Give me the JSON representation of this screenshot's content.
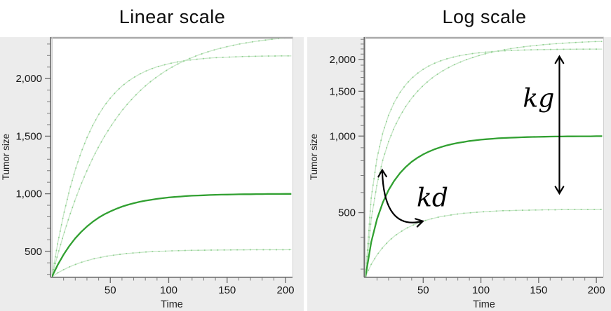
{
  "figure": {
    "background": "#ffffff",
    "panel_background": "#ececec",
    "plot_background": "#ffffff",
    "axis_color": "#6a6a6a",
    "border_color": "#a9a9a9"
  },
  "chart_data": {
    "type": "line",
    "panels": [
      {
        "title": "Linear scale",
        "xlabel": "Time",
        "ylabel": "Tumor size",
        "y_scale": "linear",
        "xlim": [
          0,
          206
        ],
        "ylim": [
          280,
          2360
        ],
        "x_major_ticks": [
          50,
          100,
          150,
          200
        ],
        "x_major_labels": [
          "50",
          "100",
          "150",
          "200"
        ],
        "x_minor_ticks": [
          10,
          20,
          30,
          40,
          60,
          70,
          80,
          90,
          110,
          120,
          130,
          140,
          160,
          170,
          180,
          190
        ],
        "y_major_ticks": [
          500,
          1000,
          1500,
          2000
        ],
        "y_major_labels": [
          "500",
          "1,000",
          "1,500",
          "2,000"
        ],
        "y_minor_ticks": [
          300,
          400,
          600,
          700,
          800,
          900,
          1100,
          1200,
          1300,
          1400,
          1600,
          1700,
          1800,
          1900,
          2100,
          2200,
          2300
        ],
        "grid": false,
        "legend": "none",
        "annotations": []
      },
      {
        "title": "Log scale",
        "xlabel": "Time",
        "ylabel": "Tumor size",
        "y_scale": "log",
        "xlim": [
          0,
          206
        ],
        "ylim": [
          280,
          2449
        ],
        "x_major_ticks": [
          50,
          100,
          150,
          200
        ],
        "x_major_labels": [
          "50",
          "100",
          "150",
          "200"
        ],
        "x_minor_ticks": [
          10,
          20,
          30,
          40,
          60,
          70,
          80,
          90,
          110,
          120,
          130,
          140,
          160,
          170,
          180,
          190
        ],
        "y_major_ticks": [
          500,
          1000,
          1500,
          2000
        ],
        "y_major_labels": [
          "500",
          "1,000",
          "1,500",
          "2,000"
        ],
        "y_minor_ticks": [
          300,
          400,
          600,
          700,
          800,
          900,
          1100,
          1200,
          1300,
          1400,
          1600,
          1700,
          1800,
          1900,
          2100,
          2200,
          2300,
          2400
        ],
        "grid": false,
        "legend": "none",
        "annotations": [
          {
            "id": "kg",
            "label": "kg",
            "type": "vertical-double-arrow",
            "x": 168,
            "y_from": 600,
            "y_to": 2040,
            "label_pos": {
              "x": 150,
              "y": 1400
            },
            "color": "#000000"
          },
          {
            "id": "kd",
            "label": "kd",
            "type": "curved-double-arrow",
            "from": {
              "x": 14.5,
              "y": 730
            },
            "control": {
              "x": 16,
              "y": 425
            },
            "to": {
              "x": 49,
              "y": 462
            },
            "label_pos": {
              "x": 58,
              "y": 570
            },
            "color": "#000000"
          }
        ]
      }
    ],
    "x": [
      0,
      5,
      10,
      15,
      20,
      25,
      30,
      35,
      40,
      45,
      50,
      55,
      60,
      65,
      70,
      75,
      80,
      85,
      90,
      95,
      100,
      105,
      110,
      115,
      120,
      125,
      130,
      135,
      140,
      145,
      150,
      155,
      160,
      165,
      170,
      175,
      180,
      185,
      190,
      195,
      200,
      205
    ],
    "series": [
      {
        "name": "upper faint curve (plateau ~2350)",
        "style": "faint",
        "color": "#c7e6c7",
        "marker_color": "#8fd08f",
        "width": 1.3,
        "values": [
          280,
          472,
          647,
          806,
          950,
          1082,
          1201,
          1310,
          1409,
          1498,
          1580,
          1654,
          1722,
          1783,
          1839,
          1890,
          1936,
          1978,
          2016,
          2051,
          2083,
          2112,
          2138,
          2162,
          2183,
          2203,
          2221,
          2237,
          2252,
          2265,
          2277,
          2288,
          2299,
          2308,
          2316,
          2324,
          2331,
          2337,
          2343,
          2348,
          2353,
          2355
        ]
      },
      {
        "name": "upper faint curve (plateau ~2200)",
        "style": "faint",
        "color": "#c7e6c7",
        "marker_color": "#8fd08f",
        "width": 1.3,
        "values": [
          280,
          572,
          820,
          1030,
          1208,
          1359,
          1487,
          1595,
          1687,
          1765,
          1831,
          1887,
          1935,
          1975,
          2009,
          2038,
          2063,
          2084,
          2102,
          2116,
          2129,
          2140,
          2149,
          2157,
          2163,
          2169,
          2174,
          2178,
          2181,
          2184,
          2186,
          2188,
          2190,
          2192,
          2193,
          2194,
          2195,
          2196,
          2196,
          2197,
          2197,
          2197
        ]
      },
      {
        "name": "lower faint curve (plateau ~515)",
        "style": "faint",
        "color": "#c7e6c7",
        "marker_color": "#8fd08f",
        "width": 1.3,
        "values": [
          280,
          313,
          341,
          365,
          386,
          404,
          419,
          433,
          444,
          454,
          463,
          470,
          476,
          482,
          486,
          490,
          494,
          497,
          499,
          501,
          503,
          505,
          506,
          508,
          509,
          509,
          510,
          511,
          511,
          512,
          512,
          513,
          513,
          513,
          514,
          514,
          514,
          514,
          514,
          514,
          514,
          515
        ]
      },
      {
        "name": "bold green curve (plateau 1,000)",
        "style": "bold",
        "color": "#31a031",
        "width": 2.3,
        "values": [
          280,
          383,
          472,
          548,
          613,
          668,
          716,
          757,
          792,
          822,
          847,
          869,
          888,
          904,
          918,
          930,
          940,
          948,
          956,
          962,
          968,
          972,
          976,
          980,
          983,
          985,
          987,
          989,
          991,
          992,
          993,
          994,
          995,
          996,
          996,
          997,
          997,
          998,
          998,
          998,
          999,
          999
        ]
      }
    ]
  }
}
